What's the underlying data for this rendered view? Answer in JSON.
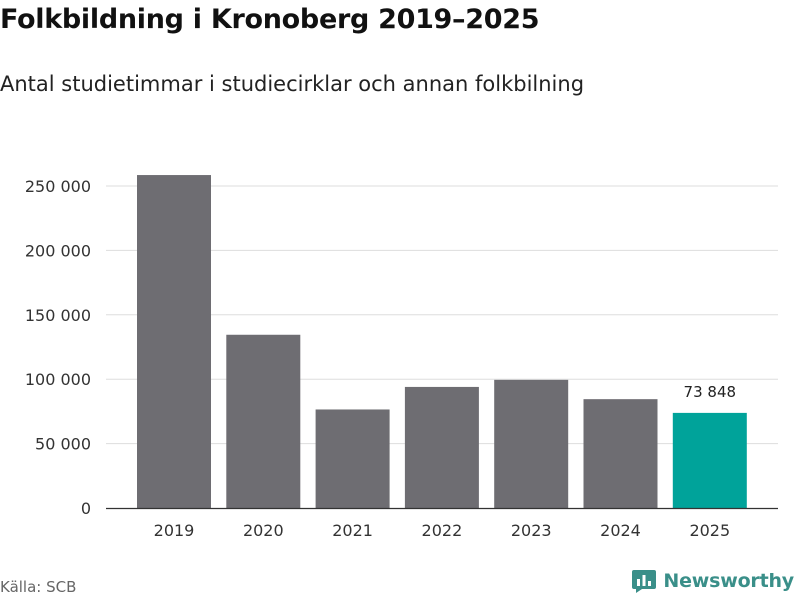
{
  "title": "Folkbildning i Kronoberg 2019–2025",
  "subtitle": "Antal studietimmar i studiecirklar och annan folkbilning",
  "source": "Källa: SCB",
  "brand": {
    "name": "Newsworthy",
    "icon": "newsworthy-logo-icon",
    "color": "#3a8f89"
  },
  "colors": {
    "bar": "#6e6d72",
    "highlight": "#00a39a",
    "grid": "#dddddd",
    "axis": "#333333"
  },
  "chart_data": {
    "type": "bar",
    "title": "Folkbildning i Kronoberg 2019–2025",
    "subtitle": "Antal studietimmar i studiecirklar och annan folkbilning",
    "xlabel": "",
    "ylabel": "",
    "categories": [
      "2019",
      "2020",
      "2021",
      "2022",
      "2023",
      "2024",
      "2025"
    ],
    "values": [
      258500,
      134500,
      76500,
      94000,
      99500,
      84500,
      73848
    ],
    "highlight_index": 6,
    "data_labels": [
      {
        "index": 6,
        "text": "73 848"
      }
    ],
    "yticks": [
      0,
      50000,
      100000,
      150000,
      200000,
      250000
    ],
    "ytick_labels": [
      "0",
      "50 000",
      "100 000",
      "150 000",
      "200 000",
      "250 000"
    ],
    "ylim": [
      0,
      260000
    ],
    "grid": true,
    "legend": "none"
  }
}
